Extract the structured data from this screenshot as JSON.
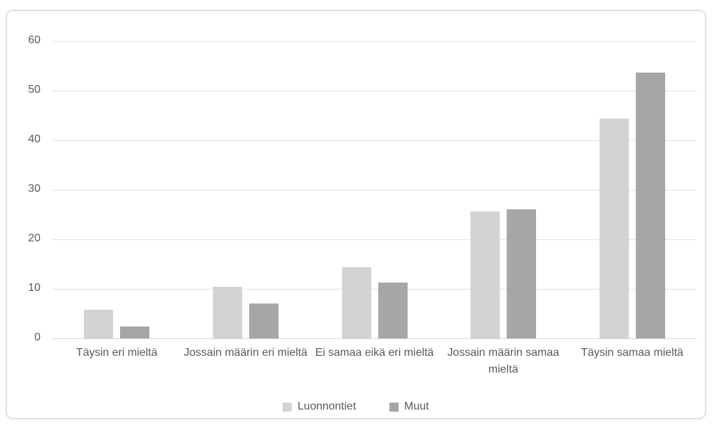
{
  "chart_data": {
    "type": "bar",
    "title": "",
    "xlabel": "",
    "ylabel": "",
    "categories": [
      "Täysin eri mieltä",
      "Jossain määrin eri mieltä",
      "Ei samaa eikä eri mieltä",
      "Jossain määrin samaa mieltä",
      "Täysin samaa mieltä"
    ],
    "series": [
      {
        "name": "Luonnontiet",
        "color": "#d3d3d3",
        "values": [
          5.8,
          10.4,
          14.3,
          25.6,
          44.4
        ]
      },
      {
        "name": "Muut",
        "color": "#a6a6a6",
        "values": [
          2.4,
          7.0,
          11.2,
          26.1,
          53.6
        ]
      }
    ],
    "ylim": [
      0,
      60
    ],
    "yticks": [
      0,
      10,
      20,
      30,
      40,
      50,
      60
    ],
    "grid": true,
    "legend_position": "bottom"
  },
  "colors": {
    "gridline": "#e2e2e2",
    "zero_axis": "#d4d4d4",
    "text": "#595959",
    "frame_border": "#e0e0e0",
    "background": "#ffffff"
  }
}
